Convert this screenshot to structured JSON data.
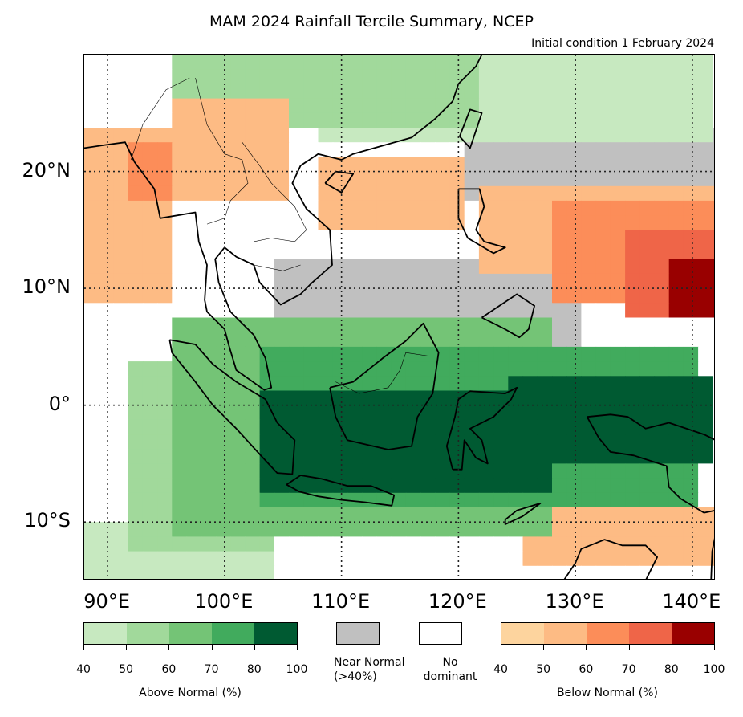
{
  "title": "MAM 2024 Rainfall Tercile Summary, NCEP",
  "subtitle": "Initial condition 1 February 2024",
  "lat_labels": [
    {
      "text": "20°N",
      "lat": 20
    },
    {
      "text": "10°N",
      "lat": 10
    },
    {
      "text": "0°",
      "lat": 0
    },
    {
      "text": "10°S",
      "lat": -10
    }
  ],
  "lon_labels": [
    {
      "text": "90°E",
      "lon": 90
    },
    {
      "text": "100°E",
      "lon": 100
    },
    {
      "text": "110°E",
      "lon": 110
    },
    {
      "text": "120°E",
      "lon": 120
    },
    {
      "text": "130°E",
      "lon": 130
    },
    {
      "text": "140°E",
      "lon": 140
    }
  ],
  "extent": {
    "lon_min": 88,
    "lon_max": 142,
    "lat_min": -15,
    "lat_max": 30
  },
  "colors": {
    "above": [
      "#c7e9c0",
      "#a1d99b",
      "#74c476",
      "#41ab5d",
      "#005a32"
    ],
    "below": [
      "#fdd49e",
      "#fdbb84",
      "#fc8d59",
      "#ef6548",
      "#990000"
    ],
    "near_normal": "#c0c0c0",
    "no_dominant": "#ffffff"
  },
  "legend": {
    "above_ticks": [
      "40",
      "50",
      "60",
      "70",
      "80",
      "100"
    ],
    "above_label": "Above Normal (%)",
    "near_normal_label_1": "Near Normal",
    "near_normal_label_2": "(>40%)",
    "no_dominant_label_1": "No",
    "no_dominant_label_2": "dominant",
    "below_ticks": [
      "40",
      "50",
      "60",
      "70",
      "80",
      "100"
    ],
    "below_label": "Below Normal (%)"
  }
}
